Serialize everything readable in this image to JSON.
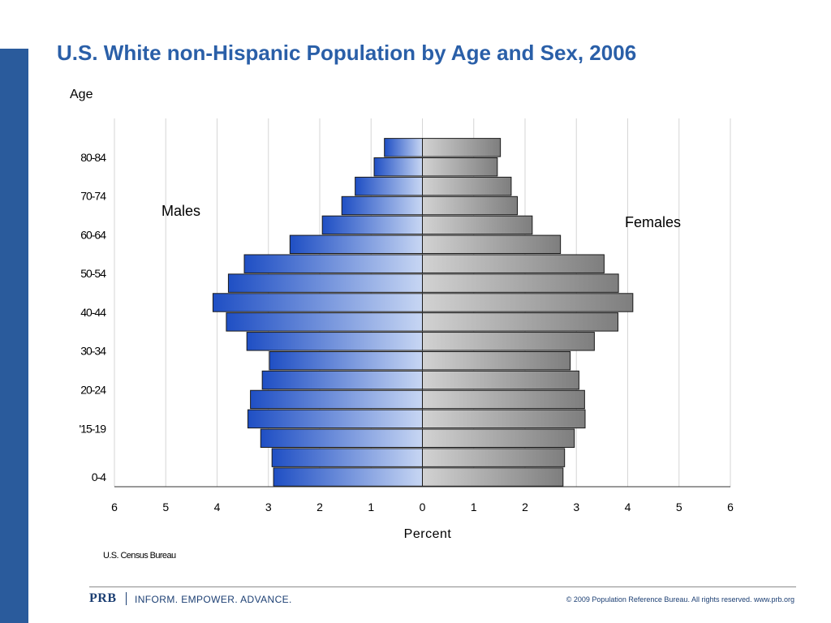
{
  "slide": {
    "title": "U.S. White non-Hispanic Population by Age and Sex, 2006",
    "source": "U.S. Census Bureau"
  },
  "footer": {
    "logo": "PRB",
    "tagline": "INFORM. EMPOWER. ADVANCE.",
    "copyright": "© 2009 Population Reference Bureau. All rights reserved. www.prb.org"
  },
  "colors": {
    "accent": "#2a5fa8",
    "side_bar": "#2a5b9c",
    "male_bar": "#3f6fd6",
    "female_bar": "#a3a3a3"
  },
  "chart_data": {
    "type": "bar",
    "orientation": "horizontal",
    "layout": "population-pyramid",
    "ylabel": "Age",
    "xlabel": "Percent",
    "xlim": [
      -6,
      6
    ],
    "x_ticks": [
      "6",
      "5",
      "4",
      "3",
      "2",
      "1",
      "0",
      "1",
      "2",
      "3",
      "4",
      "5",
      "6"
    ],
    "y_tick_labels": [
      "0-4",
      "'15-19",
      "20-24",
      "30-34",
      "40-44",
      "50-54",
      "60-64",
      "70-74",
      "80-84"
    ],
    "y_tick_positions": [
      0,
      2.5,
      4.5,
      6.5,
      8.5,
      10.5,
      12.5,
      14.5,
      16.5
    ],
    "categories": [
      "",
      "",
      "",
      "",
      "",
      "",
      "",
      "",
      "",
      "",
      "",
      "",
      "",
      "",
      "",
      "",
      "",
      "",
      ""
    ],
    "series": [
      {
        "name": "Males",
        "side": "left",
        "values": [
          2.9,
          2.93,
          3.15,
          3.4,
          3.35,
          3.12,
          2.98,
          3.42,
          3.82,
          4.08,
          3.78,
          3.47,
          2.58,
          1.95,
          1.57,
          1.31,
          0.94,
          0.74,
          null
        ]
      },
      {
        "name": "Females",
        "side": "right",
        "values": [
          2.74,
          2.77,
          2.96,
          3.17,
          3.16,
          3.05,
          2.88,
          3.35,
          3.81,
          4.1,
          3.82,
          3.54,
          2.69,
          2.14,
          1.85,
          1.73,
          1.46,
          1.52,
          null
        ]
      }
    ],
    "series_labels": {
      "left": "Males",
      "right": "Females"
    },
    "grid": "vertical"
  }
}
